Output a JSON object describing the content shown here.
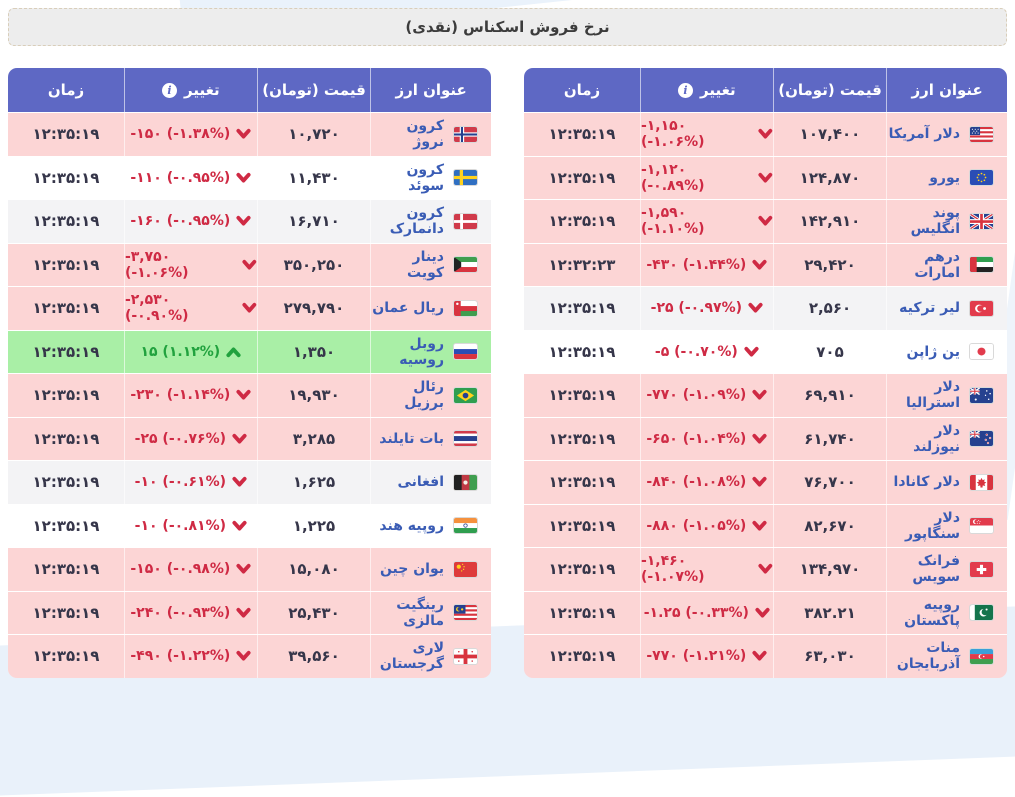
{
  "page": {
    "title": "نرخ فروش اسکناس (نقدی)"
  },
  "headers": {
    "currency": "عنوان ارز",
    "price": "قیمت (تومان)",
    "change": "تغییر",
    "time": "زمان"
  },
  "icons": {
    "header_info": "info-icon",
    "decrease": "caret-down-icon",
    "increase": "caret-up-icon"
  },
  "colors": {
    "header_bg": "#5e68c4",
    "row_pink": "#fcd5d5",
    "row_gray": "#f3f3f5",
    "row_white": "#ffffff",
    "row_green": "#a9efa6",
    "negative": "#cf2a44",
    "positive": "#21a23e",
    "name_text": "#3a5cb5",
    "value_text": "#36364a"
  },
  "tables": [
    {
      "id": "major-currencies",
      "rows": [
        {
          "name": "دلار آمریکا",
          "flag": "us-flag",
          "price": "۱۰۷,۴۰۰",
          "change": "-۱,۱۵۰",
          "pct": "(-۱.۰۶%)",
          "dir": "down",
          "time": "۱۲:۳۵:۱۹",
          "bg": "pink"
        },
        {
          "name": "یورو",
          "flag": "eu-flag",
          "price": "۱۲۴,۸۷۰",
          "change": "-۱,۱۲۰",
          "pct": "(-۰.۸۹%)",
          "dir": "down",
          "time": "۱۲:۳۵:۱۹",
          "bg": "pink"
        },
        {
          "name": "پوند انگلیس",
          "flag": "gb-flag",
          "price": "۱۴۲,۹۱۰",
          "change": "-۱,۵۹۰",
          "pct": "(-۱.۱۰%)",
          "dir": "down",
          "time": "۱۲:۳۵:۱۹",
          "bg": "pink"
        },
        {
          "name": "درهم امارات",
          "flag": "ae-flag",
          "price": "۲۹,۴۲۰",
          "change": "-۴۳۰",
          "pct": "(-۱.۴۴%)",
          "dir": "down",
          "time": "۱۲:۳۲:۲۳",
          "bg": "pink"
        },
        {
          "name": "لیر ترکیه",
          "flag": "tr-flag",
          "price": "۲,۵۶۰",
          "change": "-۲۵",
          "pct": "(-۰.۹۷%)",
          "dir": "down",
          "time": "۱۲:۳۵:۱۹",
          "bg": "gray"
        },
        {
          "name": "ین ژاپن",
          "flag": "jp-flag",
          "price": "۷۰۵",
          "change": "-۵",
          "pct": "(-۰.۷۰%)",
          "dir": "down",
          "time": "۱۲:۳۵:۱۹",
          "bg": "white"
        },
        {
          "name": "دلار استرالیا",
          "flag": "au-flag",
          "price": "۶۹,۹۱۰",
          "change": "-۷۷۰",
          "pct": "(-۱.۰۹%)",
          "dir": "down",
          "time": "۱۲:۳۵:۱۹",
          "bg": "pink"
        },
        {
          "name": "دلار نیوزلند",
          "flag": "nz-flag",
          "price": "۶۱,۷۴۰",
          "change": "-۶۵۰",
          "pct": "(-۱.۰۴%)",
          "dir": "down",
          "time": "۱۲:۳۵:۱۹",
          "bg": "pink"
        },
        {
          "name": "دلار کانادا",
          "flag": "ca-flag",
          "price": "۷۶,۷۰۰",
          "change": "-۸۴۰",
          "pct": "(-۱.۰۸%)",
          "dir": "down",
          "time": "۱۲:۳۵:۱۹",
          "bg": "pink"
        },
        {
          "name": "دلار سنگاپور",
          "flag": "sg-flag",
          "price": "۸۲,۶۷۰",
          "change": "-۸۸۰",
          "pct": "(-۱.۰۵%)",
          "dir": "down",
          "time": "۱۲:۳۵:۱۹",
          "bg": "pink"
        },
        {
          "name": "فرانک سویس",
          "flag": "ch-flag",
          "price": "۱۳۴,۹۷۰",
          "change": "-۱,۴۶۰",
          "pct": "(-۱.۰۷%)",
          "dir": "down",
          "time": "۱۲:۳۵:۱۹",
          "bg": "pink"
        },
        {
          "name": "روپیه پاکستان",
          "flag": "pk-flag",
          "price": "۳۸۲.۲۱",
          "change": "-۱.۲۵",
          "pct": "(-۰.۳۳%)",
          "dir": "down",
          "time": "۱۲:۳۵:۱۹",
          "bg": "pink"
        },
        {
          "name": "منات آذربایجان",
          "flag": "az-flag",
          "price": "۶۳,۰۳۰",
          "change": "-۷۷۰",
          "pct": "(-۱.۲۱%)",
          "dir": "down",
          "time": "۱۲:۳۵:۱۹",
          "bg": "pink"
        }
      ]
    },
    {
      "id": "minor-currencies",
      "rows": [
        {
          "name": "کرون نروژ",
          "flag": "no-flag",
          "price": "۱۰,۷۲۰",
          "change": "-۱۵۰",
          "pct": "(-۱.۳۸%)",
          "dir": "down",
          "time": "۱۲:۳۵:۱۹",
          "bg": "pink"
        },
        {
          "name": "کرون سوئد",
          "flag": "se-flag",
          "price": "۱۱,۴۳۰",
          "change": "-۱۱۰",
          "pct": "(-۰.۹۵%)",
          "dir": "down",
          "time": "۱۲:۳۵:۱۹",
          "bg": "white"
        },
        {
          "name": "کرون دانمارک",
          "flag": "dk-flag",
          "price": "۱۶,۷۱۰",
          "change": "-۱۶۰",
          "pct": "(-۰.۹۵%)",
          "dir": "down",
          "time": "۱۲:۳۵:۱۹",
          "bg": "gray"
        },
        {
          "name": "دینار کویت",
          "flag": "kw-flag",
          "price": "۳۵۰,۲۵۰",
          "change": "-۳,۷۵۰",
          "pct": "(-۱.۰۶%)",
          "dir": "down",
          "time": "۱۲:۳۵:۱۹",
          "bg": "pink"
        },
        {
          "name": "ریال عمان",
          "flag": "om-flag",
          "price": "۲۷۹,۷۹۰",
          "change": "-۲,۵۳۰",
          "pct": "(-۰.۹۰%)",
          "dir": "down",
          "time": "۱۲:۳۵:۱۹",
          "bg": "pink"
        },
        {
          "name": "روبل روسیه",
          "flag": "ru-flag",
          "price": "۱,۳۵۰",
          "change": "۱۵",
          "pct": "(۱.۱۲%)",
          "dir": "up",
          "time": "۱۲:۳۵:۱۹",
          "bg": "green"
        },
        {
          "name": "رئال برزیل",
          "flag": "br-flag",
          "price": "۱۹,۹۳۰",
          "change": "-۲۳۰",
          "pct": "(-۱.۱۴%)",
          "dir": "down",
          "time": "۱۲:۳۵:۱۹",
          "bg": "pink"
        },
        {
          "name": "بات تایلند",
          "flag": "th-flag",
          "price": "۳,۲۸۵",
          "change": "-۲۵",
          "pct": "(-۰.۷۶%)",
          "dir": "down",
          "time": "۱۲:۳۵:۱۹",
          "bg": "pink"
        },
        {
          "name": "افغانی",
          "flag": "af-flag",
          "price": "۱,۶۲۵",
          "change": "-۱۰",
          "pct": "(-۰.۶۱%)",
          "dir": "down",
          "time": "۱۲:۳۵:۱۹",
          "bg": "gray"
        },
        {
          "name": "روپیه هند",
          "flag": "in-flag",
          "price": "۱,۲۲۵",
          "change": "-۱۰",
          "pct": "(-۰.۸۱%)",
          "dir": "down",
          "time": "۱۲:۳۵:۱۹",
          "bg": "white"
        },
        {
          "name": "یوان چین",
          "flag": "cn-flag",
          "price": "۱۵,۰۸۰",
          "change": "-۱۵۰",
          "pct": "(-۰.۹۸%)",
          "dir": "down",
          "time": "۱۲:۳۵:۱۹",
          "bg": "pink"
        },
        {
          "name": "رینگیت مالزی",
          "flag": "my-flag",
          "price": "۲۵,۴۳۰",
          "change": "-۲۴۰",
          "pct": "(-۰.۹۳%)",
          "dir": "down",
          "time": "۱۲:۳۵:۱۹",
          "bg": "pink"
        },
        {
          "name": "لاری گرجستان",
          "flag": "ge-flag",
          "price": "۳۹,۵۶۰",
          "change": "-۴۹۰",
          "pct": "(-۱.۲۲%)",
          "dir": "down",
          "time": "۱۲:۳۵:۱۹",
          "bg": "pink"
        }
      ]
    }
  ]
}
